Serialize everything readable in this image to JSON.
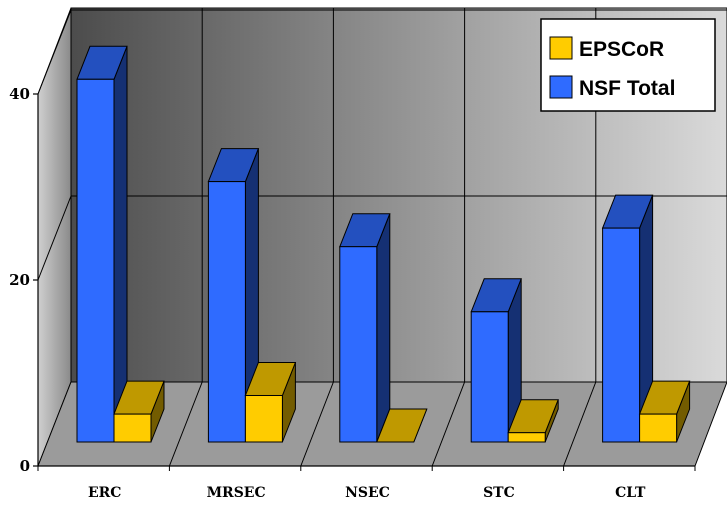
{
  "chart_data": {
    "type": "bar",
    "style": "3d-clustered",
    "title": "",
    "xlabel": "",
    "ylabel": "",
    "categories": [
      "ERC",
      "MRSEC",
      "NSEC",
      "STC",
      "CLT"
    ],
    "series": [
      {
        "name": "NSF Total",
        "values": [
          39,
          28,
          21,
          14,
          23
        ],
        "color": "#2f6bff"
      },
      {
        "name": "EPSCoR",
        "values": [
          3,
          5,
          0,
          1,
          3
        ],
        "color": "#ffcc00"
      }
    ],
    "ylim": [
      0,
      40
    ],
    "yticks": [
      "0",
      "20",
      "40"
    ],
    "grid": true,
    "legend": {
      "position": "top-right",
      "order": [
        "EPSCoR",
        "NSF Total"
      ]
    },
    "colors": {
      "back_wall_dark": "#505050",
      "back_wall_light": "#d6d6d6",
      "floor": "#9a9a9a"
    }
  }
}
